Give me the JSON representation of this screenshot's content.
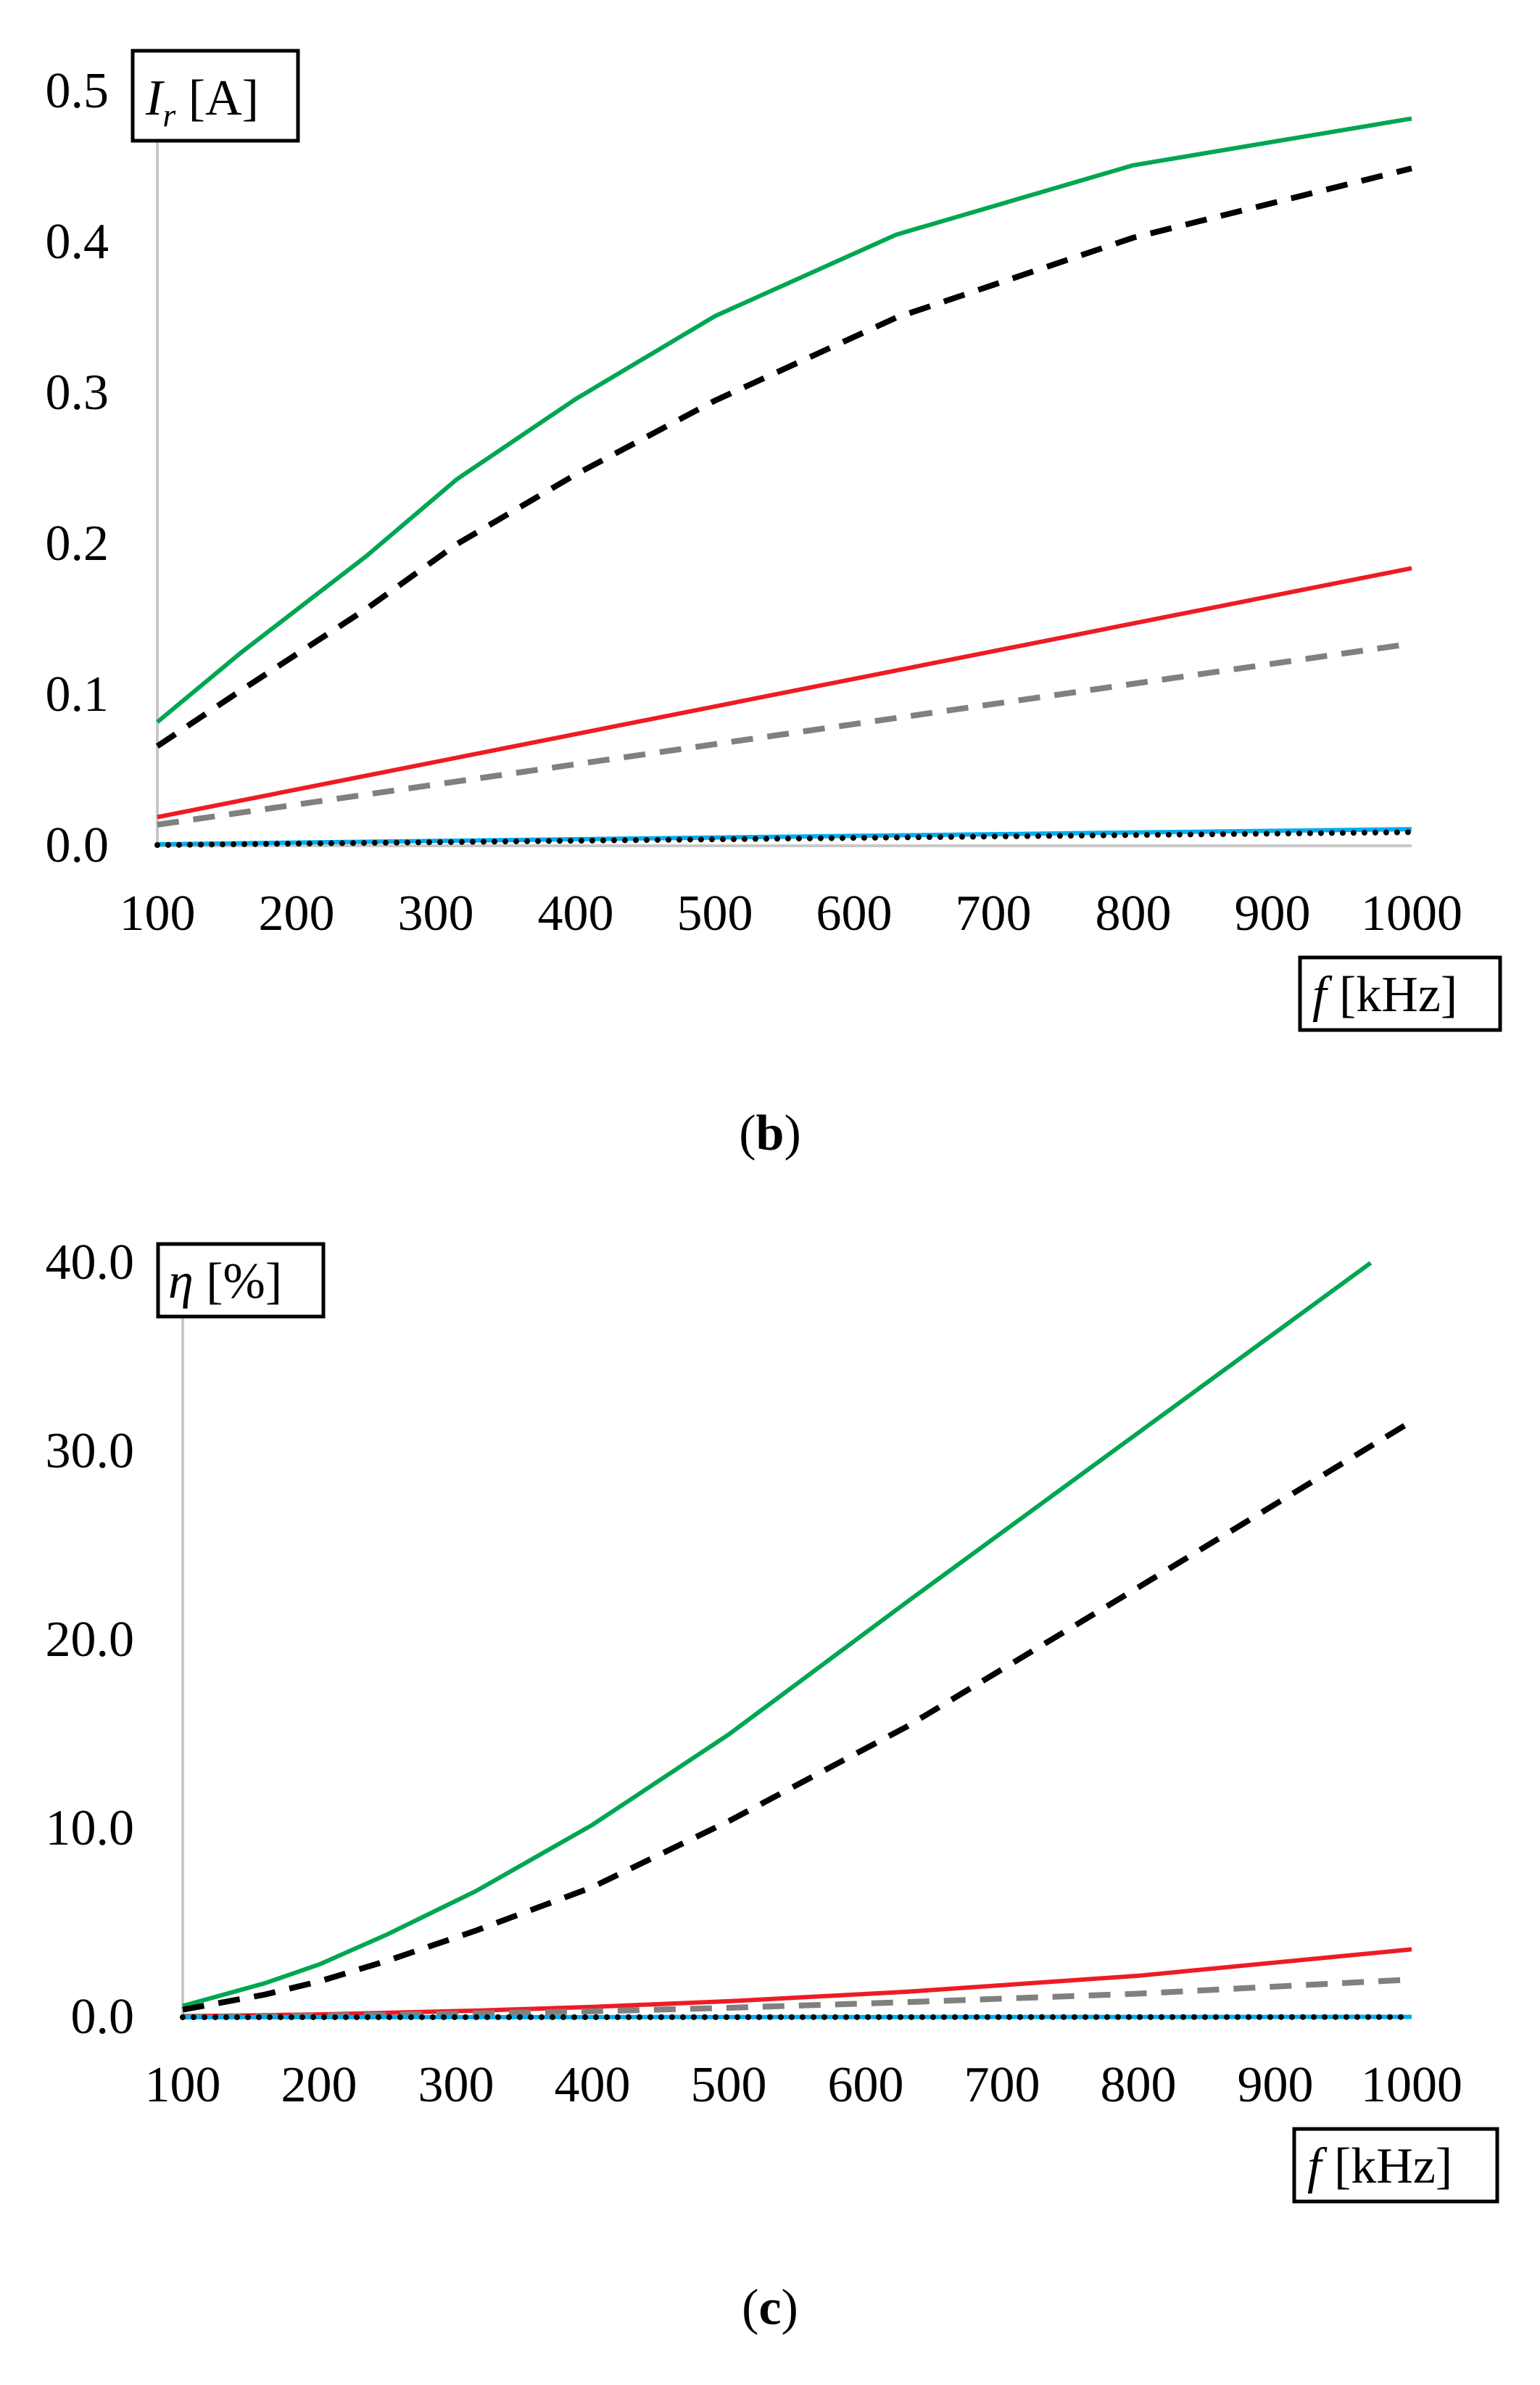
{
  "chart_data": [
    {
      "type": "line",
      "panel": "b",
      "caption": {
        "open": "(",
        "letter": "b",
        "close": ")"
      },
      "ylabel": {
        "symbol": "I",
        "subscript": "r",
        "unit": " [A]"
      },
      "xlabel": {
        "symbol": "f",
        "unit": " [kHz]"
      },
      "xlim": [
        100,
        1000
      ],
      "ylim": [
        0,
        0.5
      ],
      "xticks": [
        100,
        200,
        300,
        400,
        500,
        600,
        700,
        800,
        900,
        1000
      ],
      "xtick_labels": [
        "100",
        "200",
        "300",
        "400",
        "500",
        "600",
        "700",
        "800",
        "900",
        "1000"
      ],
      "yticks": [
        0,
        0.1,
        0.2,
        0.3,
        0.4,
        0.5
      ],
      "ytick_labels": [
        "0.0",
        "0.1",
        "0.2",
        "0.3",
        "0.4",
        "0.5"
      ],
      "grid": false,
      "legend": "none",
      "series": [
        {
          "name": "green-solid",
          "color": "#00a651",
          "dash": "solid",
          "x": [
            100,
            160,
            250,
            315,
            400,
            500,
            630,
            800,
            1000
          ],
          "y": [
            0.082,
            0.128,
            0.192,
            0.243,
            0.296,
            0.351,
            0.405,
            0.451,
            0.482
          ]
        },
        {
          "name": "black-dashed",
          "color": "#000000",
          "dash": "dashed",
          "x": [
            100,
            160,
            250,
            315,
            400,
            500,
            630,
            800,
            1000
          ],
          "y": [
            0.066,
            0.103,
            0.157,
            0.2,
            0.246,
            0.295,
            0.35,
            0.403,
            0.449
          ]
        },
        {
          "name": "red-solid",
          "color": "#ed1c24",
          "dash": "solid",
          "x": [
            100,
            1000
          ],
          "y": [
            0.019,
            0.184
          ]
        },
        {
          "name": "gray-dashed",
          "color": "#808080",
          "dash": "dashed",
          "x": [
            100,
            1000
          ],
          "y": [
            0.014,
            0.134
          ]
        },
        {
          "name": "blue-solid",
          "color": "#00aeef",
          "dash": "solid",
          "x": [
            100,
            1000
          ],
          "y": [
            0.001,
            0.011
          ]
        },
        {
          "name": "black-dotted",
          "color": "#000000",
          "dash": "dotted",
          "x": [
            100,
            1000
          ],
          "y": [
            0.0005,
            0.009
          ]
        }
      ]
    },
    {
      "type": "line",
      "panel": "c",
      "caption": {
        "open": "(",
        "letter": "c",
        "close": ")"
      },
      "ylabel": {
        "symbol": "η",
        "subscript": "",
        "unit": " [%]"
      },
      "xlabel": {
        "symbol": "f",
        "unit": " [kHz]"
      },
      "xlim": [
        100,
        1000
      ],
      "ylim": [
        0,
        40
      ],
      "xticks": [
        100,
        200,
        300,
        400,
        500,
        600,
        700,
        800,
        900,
        1000
      ],
      "xtick_labels": [
        "100",
        "200",
        "300",
        "400",
        "500",
        "600",
        "700",
        "800",
        "900",
        "1000"
      ],
      "yticks": [
        0,
        10,
        20,
        30,
        40
      ],
      "ytick_labels": [
        "0.0",
        "10.0",
        "20.0",
        "30.0",
        "40.0"
      ],
      "grid": false,
      "legend": "none",
      "series": [
        {
          "name": "green-solid",
          "color": "#00a651",
          "dash": "solid",
          "x": [
            100,
            160,
            200,
            250,
            315,
            400,
            500,
            630,
            800,
            970
          ],
          "y": [
            0.6,
            1.8,
            2.8,
            4.4,
            6.7,
            10.2,
            15.0,
            22.0,
            31.0,
            40.0
          ]
        },
        {
          "name": "black-dashed",
          "color": "#000000",
          "dash": "dashed",
          "x": [
            100,
            160,
            200,
            250,
            315,
            400,
            500,
            630,
            800,
            1000
          ],
          "y": [
            0.4,
            1.2,
            1.9,
            3.0,
            4.6,
            6.9,
            10.4,
            15.4,
            22.8,
            31.6
          ]
        },
        {
          "name": "red-solid",
          "color": "#ed1c24",
          "dash": "solid",
          "x": [
            100,
            200,
            315,
            400,
            500,
            630,
            800,
            1000
          ],
          "y": [
            0.05,
            0.15,
            0.35,
            0.55,
            0.85,
            1.35,
            2.2,
            3.6
          ]
        },
        {
          "name": "gray-dashed",
          "color": "#808080",
          "dash": "dashed",
          "x": [
            100,
            200,
            315,
            400,
            500,
            630,
            800,
            1000
          ],
          "y": [
            0.03,
            0.08,
            0.2,
            0.32,
            0.5,
            0.8,
            1.25,
            2.0
          ]
        },
        {
          "name": "blue-solid",
          "color": "#00aeef",
          "dash": "solid",
          "x": [
            100,
            1000
          ],
          "y": [
            0.0,
            0.02
          ]
        },
        {
          "name": "black-dotted",
          "color": "#000000",
          "dash": "dotted",
          "x": [
            100,
            1000
          ],
          "y": [
            0.0,
            0.01
          ]
        }
      ]
    }
  ]
}
